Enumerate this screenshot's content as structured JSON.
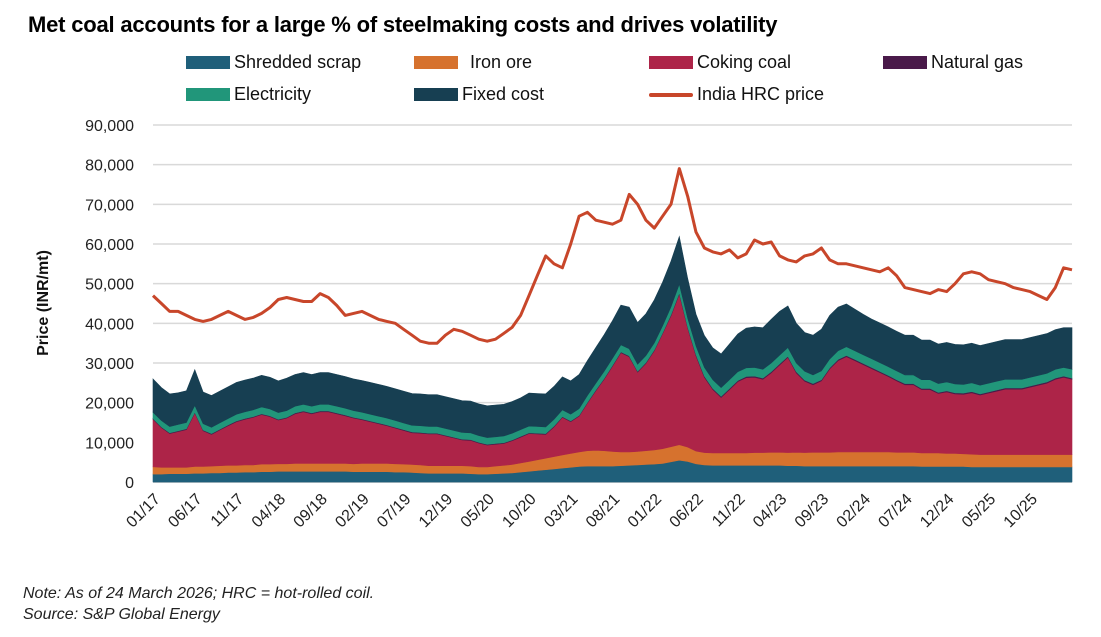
{
  "chart_data": {
    "type": "area",
    "title": "Met coal accounts for a large % of steelmaking costs and drives volatility",
    "xlabel": "",
    "ylabel": "Price (INR/mt)",
    "ylim": [
      0,
      90000
    ],
    "yticks": [
      0,
      10000,
      20000,
      30000,
      40000,
      50000,
      60000,
      70000,
      80000,
      90000
    ],
    "ytick_labels": [
      "0",
      "10,000",
      "20,000",
      "30,000",
      "40,000",
      "50,000",
      "60,000",
      "70,000",
      "80,000",
      "90,000"
    ],
    "xtick_labels": [
      "01/17",
      "06/17",
      "11/17",
      "04/18",
      "09/18",
      "02/19",
      "07/19",
      "12/19",
      "05/20",
      "10/20",
      "03/21",
      "08/21",
      "01/22",
      "06/22",
      "11/22",
      "04/23",
      "09/23",
      "02/24",
      "07/24",
      "12/24",
      "05/25",
      "10/25"
    ],
    "x_start": "01/17",
    "x_end": "03/26",
    "grid": true,
    "legend_position": "top",
    "x": [
      "01/17",
      "02/17",
      "03/17",
      "04/17",
      "05/17",
      "06/17",
      "07/17",
      "08/17",
      "09/17",
      "10/17",
      "11/17",
      "12/17",
      "01/18",
      "02/18",
      "03/18",
      "04/18",
      "05/18",
      "06/18",
      "07/18",
      "08/18",
      "09/18",
      "10/18",
      "11/18",
      "12/18",
      "01/19",
      "02/19",
      "03/19",
      "04/19",
      "05/19",
      "06/19",
      "07/19",
      "08/19",
      "09/19",
      "10/19",
      "11/19",
      "12/19",
      "01/20",
      "02/20",
      "03/20",
      "04/20",
      "05/20",
      "06/20",
      "07/20",
      "08/20",
      "09/20",
      "10/20",
      "11/20",
      "12/20",
      "01/21",
      "02/21",
      "03/21",
      "04/21",
      "05/21",
      "06/21",
      "07/21",
      "08/21",
      "09/21",
      "10/21",
      "11/21",
      "12/21",
      "01/22",
      "02/22",
      "03/22",
      "04/22",
      "05/22",
      "06/22",
      "07/22",
      "08/22",
      "09/22",
      "10/22",
      "11/22",
      "12/22",
      "01/23",
      "02/23",
      "03/23",
      "04/23",
      "05/23",
      "06/23",
      "07/23",
      "08/23",
      "09/23",
      "10/23",
      "11/23",
      "12/23",
      "01/24",
      "02/24",
      "03/24",
      "04/24",
      "05/24",
      "06/24",
      "07/24",
      "08/24",
      "09/24",
      "10/24",
      "11/24",
      "12/24",
      "01/25",
      "02/25",
      "03/25",
      "04/25",
      "05/25",
      "06/25",
      "07/25",
      "08/25",
      "09/25",
      "10/25",
      "11/25",
      "12/25",
      "01/26",
      "02/26",
      "03/26"
    ],
    "series": [
      {
        "name": "Shredded scrap",
        "kind": "area",
        "color": "#1f5f7a",
        "values": [
          2000,
          2000,
          2100,
          2100,
          2100,
          2200,
          2200,
          2300,
          2300,
          2400,
          2400,
          2500,
          2500,
          2600,
          2600,
          2700,
          2700,
          2700,
          2700,
          2700,
          2700,
          2700,
          2700,
          2700,
          2600,
          2600,
          2600,
          2600,
          2600,
          2500,
          2500,
          2400,
          2300,
          2200,
          2200,
          2200,
          2200,
          2200,
          2100,
          2000,
          2000,
          2100,
          2200,
          2300,
          2500,
          2700,
          2900,
          3100,
          3300,
          3500,
          3700,
          3900,
          4000,
          4000,
          4000,
          4000,
          4100,
          4200,
          4300,
          4400,
          4500,
          4700,
          5100,
          5500,
          5200,
          4600,
          4300,
          4200,
          4200,
          4200,
          4200,
          4200,
          4200,
          4200,
          4200,
          4200,
          4100,
          4100,
          4000,
          4000,
          4000,
          4000,
          4000,
          4000,
          4000,
          4000,
          4000,
          4000,
          4000,
          4000,
          4000,
          4000,
          3900,
          3900,
          3900,
          3900,
          3900,
          3900,
          3800,
          3800,
          3800,
          3800,
          3800,
          3800,
          3800,
          3800,
          3800,
          3800,
          3800,
          3800,
          3800
        ]
      },
      {
        "name": "Iron ore",
        "kind": "area",
        "color": "#d6722e",
        "values": [
          1800,
          1700,
          1600,
          1600,
          1600,
          1700,
          1700,
          1700,
          1800,
          1800,
          1800,
          1800,
          1800,
          1900,
          1900,
          1900,
          1900,
          2000,
          2000,
          2000,
          2000,
          2000,
          2000,
          2000,
          2000,
          2100,
          2100,
          2100,
          2100,
          2100,
          2000,
          2000,
          2000,
          1900,
          1900,
          1900,
          1900,
          1900,
          1900,
          1800,
          1800,
          1900,
          2000,
          2100,
          2300,
          2500,
          2700,
          2900,
          3100,
          3300,
          3500,
          3700,
          3900,
          4000,
          3900,
          3700,
          3500,
          3400,
          3400,
          3500,
          3600,
          3700,
          3800,
          3900,
          3600,
          3200,
          3100,
          3100,
          3100,
          3100,
          3100,
          3100,
          3200,
          3200,
          3300,
          3300,
          3300,
          3400,
          3400,
          3500,
          3500,
          3500,
          3600,
          3600,
          3600,
          3600,
          3600,
          3600,
          3600,
          3500,
          3500,
          3500,
          3400,
          3400,
          3400,
          3300,
          3300,
          3200,
          3200,
          3100,
          3100,
          3100,
          3100,
          3100,
          3100,
          3100,
          3100,
          3100,
          3100,
          3100,
          3100
        ]
      },
      {
        "name": "Coking coal",
        "kind": "area",
        "color": "#ad2448",
        "values": [
          12000,
          10000,
          8500,
          9000,
          9500,
          13500,
          9000,
          8000,
          9000,
          10000,
          11000,
          11500,
          12000,
          12500,
          12000,
          11000,
          11500,
          12500,
          13000,
          12500,
          13000,
          13000,
          12500,
          12000,
          11500,
          11000,
          10500,
          10000,
          9500,
          9000,
          8500,
          8000,
          8000,
          8000,
          8000,
          7500,
          7000,
          6500,
          6500,
          6000,
          5500,
          5500,
          5500,
          6000,
          6500,
          7000,
          6500,
          6000,
          7500,
          9500,
          8000,
          9000,
          12000,
          15000,
          18000,
          21500,
          25000,
          24000,
          20000,
          22000,
          25000,
          29000,
          33000,
          38000,
          30000,
          24000,
          19000,
          16000,
          14000,
          16000,
          18000,
          19000,
          19000,
          18500,
          20000,
          22000,
          24000,
          20000,
          18000,
          17000,
          18000,
          21000,
          23000,
          24000,
          23000,
          22000,
          21000,
          20000,
          19000,
          18000,
          17000,
          17000,
          16000,
          16000,
          15000,
          15500,
          15000,
          15000,
          15500,
          15000,
          15500,
          16000,
          16500,
          16500,
          16500,
          17000,
          17500,
          18000,
          19000,
          19500,
          19000
        ]
      },
      {
        "name": "Natural gas",
        "kind": "area",
        "color": "#4a1a4a",
        "values": [
          200,
          200,
          200,
          200,
          200,
          200,
          200,
          200,
          200,
          200,
          200,
          200,
          200,
          200,
          200,
          200,
          200,
          200,
          200,
          200,
          200,
          200,
          200,
          200,
          200,
          200,
          200,
          200,
          200,
          200,
          200,
          200,
          200,
          200,
          200,
          200,
          200,
          200,
          200,
          200,
          200,
          200,
          200,
          200,
          200,
          200,
          200,
          200,
          200,
          200,
          200,
          200,
          200,
          200,
          200,
          200,
          200,
          200,
          200,
          200,
          200,
          200,
          300,
          300,
          300,
          300,
          300,
          300,
          300,
          300,
          300,
          300,
          300,
          300,
          300,
          300,
          300,
          300,
          300,
          300,
          300,
          300,
          300,
          300,
          300,
          300,
          300,
          300,
          300,
          300,
          300,
          300,
          300,
          300,
          300,
          300,
          300,
          300,
          300,
          300,
          300,
          300,
          300,
          300,
          300,
          300,
          300,
          300,
          300,
          300,
          300
        ]
      },
      {
        "name": "Electricity",
        "kind": "area",
        "color": "#21967a",
        "values": [
          1600,
          1600,
          1600,
          1600,
          1600,
          1700,
          1600,
          1600,
          1600,
          1600,
          1700,
          1700,
          1700,
          1700,
          1700,
          1700,
          1700,
          1700,
          1700,
          1700,
          1700,
          1700,
          1700,
          1700,
          1700,
          1700,
          1700,
          1700,
          1700,
          1700,
          1700,
          1700,
          1700,
          1700,
          1700,
          1700,
          1700,
          1700,
          1700,
          1700,
          1700,
          1700,
          1700,
          1700,
          1700,
          1700,
          1700,
          1700,
          1700,
          1700,
          1700,
          1700,
          1700,
          1700,
          1800,
          1800,
          1800,
          1800,
          1800,
          1800,
          1800,
          1800,
          2000,
          2200,
          2200,
          2200,
          2200,
          2200,
          2200,
          2200,
          2200,
          2200,
          2200,
          2200,
          2200,
          2200,
          2200,
          2200,
          2200,
          2200,
          2200,
          2200,
          2200,
          2200,
          2200,
          2200,
          2200,
          2200,
          2200,
          2200,
          2200,
          2200,
          2200,
          2200,
          2200,
          2200,
          2200,
          2200,
          2200,
          2200,
          2200,
          2200,
          2200,
          2200,
          2200,
          2200,
          2200,
          2200,
          2200,
          2200,
          2200
        ]
      },
      {
        "name": "Fixed cost",
        "kind": "area",
        "color": "#173f52",
        "values": [
          8400,
          8300,
          8200,
          8000,
          8000,
          9000,
          8000,
          8000,
          8000,
          8000,
          8000,
          8000,
          8000,
          8000,
          8000,
          8000,
          8200,
          8000,
          8000,
          8000,
          8000,
          8000,
          8000,
          8000,
          8000,
          8000,
          8000,
          8000,
          8000,
          8000,
          8000,
          8000,
          8000,
          8000,
          8000,
          8000,
          8000,
          8000,
          8000,
          8000,
          8000,
          8000,
          8000,
          8000,
          8000,
          8300,
          8300,
          8300,
          8300,
          8300,
          8400,
          8600,
          8800,
          9000,
          9200,
          9500,
          10000,
          10500,
          10500,
          10500,
          10800,
          11000,
          11500,
          12000,
          10000,
          8000,
          8000,
          8000,
          8500,
          9000,
          9500,
          10000,
          10200,
          10500,
          11000,
          11000,
          10500,
          10000,
          9800,
          10000,
          10500,
          11000,
          11000,
          10800,
          10500,
          10200,
          10000,
          10000,
          10000,
          10000,
          10000,
          10000,
          10000,
          10000,
          10000,
          10000,
          10000,
          10000,
          10000,
          10000,
          10000,
          10000,
          10000,
          10000,
          10000,
          10000,
          10000,
          10000,
          10000,
          10000,
          10500
        ]
      },
      {
        "name": "India HRC price",
        "kind": "line",
        "color": "#c8462a",
        "values": [
          47000,
          45000,
          43000,
          43000,
          42000,
          41000,
          40500,
          41000,
          42000,
          43000,
          42000,
          41000,
          41500,
          42500,
          44000,
          46000,
          46500,
          46000,
          45500,
          45500,
          47500,
          46500,
          44500,
          42000,
          42500,
          43000,
          42000,
          41000,
          40500,
          40000,
          38500,
          37000,
          35500,
          35000,
          35000,
          37000,
          38500,
          38000,
          37000,
          36000,
          35500,
          36000,
          37500,
          39000,
          42000,
          47000,
          52000,
          57000,
          55000,
          54000,
          60000,
          67000,
          68000,
          66000,
          65500,
          65000,
          66000,
          72500,
          70000,
          66000,
          64000,
          67000,
          70000,
          79000,
          72000,
          63000,
          59000,
          58000,
          57500,
          58500,
          56500,
          57500,
          61000,
          60000,
          60500,
          57000,
          56000,
          55500,
          57000,
          57500,
          59000,
          56000,
          55000,
          55000,
          54500,
          54000,
          53500,
          53000,
          54000,
          52000,
          49000,
          48500,
          48000,
          47500,
          48500,
          48000,
          50000,
          52500,
          53000,
          52500,
          51000,
          50500,
          50000,
          49000,
          48500,
          48000,
          47000,
          46000,
          49000,
          54000,
          53500
        ]
      }
    ]
  },
  "legend": [
    {
      "label": "Shredded scrap",
      "color": "#1f5f7a",
      "kind": "area"
    },
    {
      "label": "Iron ore",
      "color": "#d6722e",
      "kind": "area"
    },
    {
      "label": "Coking coal",
      "color": "#ad2448",
      "kind": "area"
    },
    {
      "label": "Natural gas",
      "color": "#4a1a4a",
      "kind": "area"
    },
    {
      "label": "Electricity",
      "color": "#21967a",
      "kind": "area"
    },
    {
      "label": "Fixed cost",
      "color": "#173f52",
      "kind": "area"
    },
    {
      "label": "India HRC price",
      "color": "#c8462a",
      "kind": "line"
    }
  ],
  "footer": {
    "note": "Note: As of 24 March 2026; HRC = hot-rolled coil.",
    "source": "Source: S&P Global Energy"
  }
}
